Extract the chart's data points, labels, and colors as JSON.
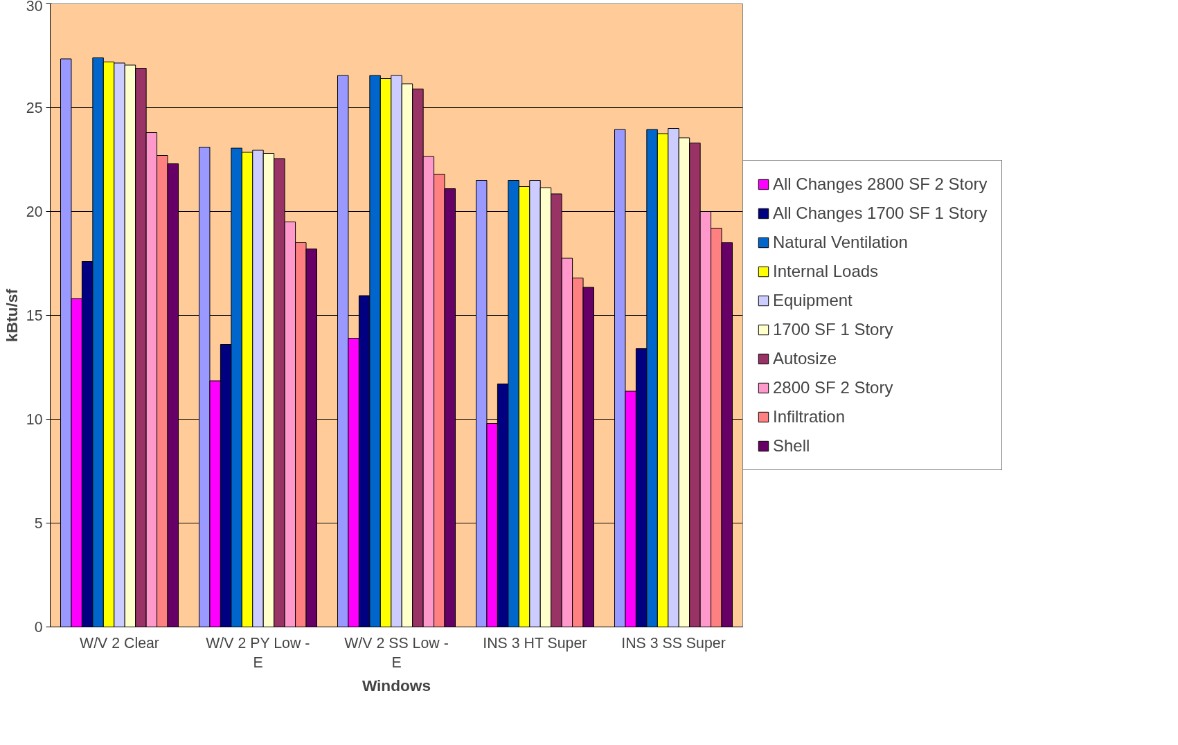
{
  "chart_data": {
    "type": "bar",
    "xlabel": "Windows",
    "ylabel": "kBtu/sf",
    "categories": [
      "W/V 2 Clear",
      "W/V 2 PY Low - E",
      "W/V 2 SS Low - E",
      "INS 3 HT Super",
      "INS 3 SS Super"
    ],
    "ylim": [
      0,
      30
    ],
    "yticks": [
      0,
      5,
      10,
      15,
      20,
      25,
      30
    ],
    "grid": "y",
    "legend": "right",
    "series": [
      {
        "color": "#9999ff",
        "values": [
          27.35,
          23.1,
          26.55,
          21.5,
          23.95
        ]
      },
      {
        "name": "All Changes 2800 SF 2 Story",
        "color": "#ff00ff",
        "values": [
          15.8,
          11.85,
          13.9,
          9.8,
          11.35
        ]
      },
      {
        "name": "All Changes 1700 SF 1 Story",
        "color": "#000080",
        "values": [
          17.6,
          13.6,
          15.95,
          11.7,
          13.4
        ]
      },
      {
        "name": "Natural Ventilation",
        "color": "#0066cc",
        "values": [
          27.4,
          23.05,
          26.55,
          21.5,
          23.95
        ]
      },
      {
        "name": "Internal Loads",
        "color": "#ffff00",
        "values": [
          27.2,
          22.85,
          26.4,
          21.2,
          23.75
        ]
      },
      {
        "name": "Equipment",
        "color": "#ccccff",
        "values": [
          27.15,
          22.95,
          26.55,
          21.5,
          24.0
        ]
      },
      {
        "name": "1700 SF 1 Story",
        "color": "#ffffcc",
        "values": [
          27.05,
          22.8,
          26.15,
          21.15,
          23.55
        ]
      },
      {
        "name": "Autosize",
        "color": "#993366",
        "values": [
          26.9,
          22.55,
          25.9,
          20.85,
          23.3
        ]
      },
      {
        "name": "2800 SF 2 Story",
        "color": "#ff99cc",
        "values": [
          23.8,
          19.5,
          22.65,
          17.75,
          20.0
        ]
      },
      {
        "name": "Infiltration",
        "color": "#ff8080",
        "values": [
          22.7,
          18.5,
          21.8,
          16.8,
          19.2
        ]
      },
      {
        "name": "Shell",
        "color": "#660066",
        "values": [
          22.3,
          18.2,
          21.1,
          16.35,
          18.5
        ]
      }
    ]
  }
}
